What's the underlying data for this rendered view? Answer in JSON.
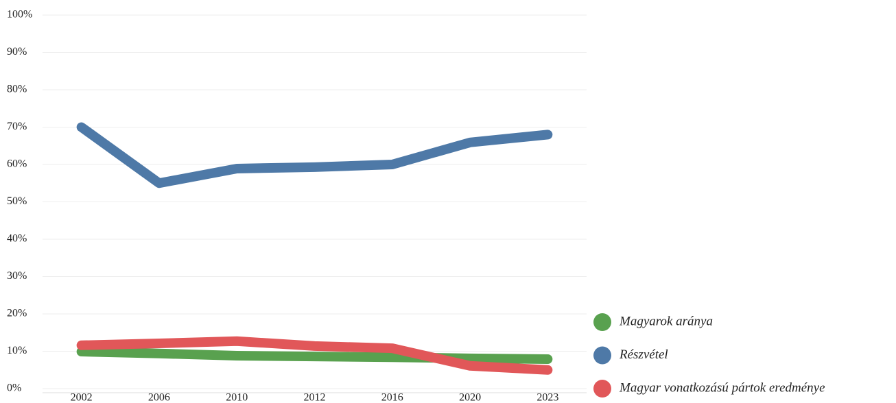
{
  "chart_data": {
    "type": "line",
    "categories": [
      "2002",
      "2006",
      "2010",
      "2012",
      "2016",
      "2020",
      "2023"
    ],
    "series": [
      {
        "name": "Magyarok aránya",
        "color": "#59a14f",
        "values": [
          9.9,
          9.4,
          8.8,
          8.6,
          8.4,
          8.1,
          7.9
        ]
      },
      {
        "name": "Részvétel",
        "color": "#4e79a7",
        "values": [
          70,
          55,
          58.9,
          59.3,
          60,
          65.9,
          68
        ]
      },
      {
        "name": "Magyar vonatkozású pártok eredménye",
        "color": "#e15759",
        "values": [
          11.6,
          12.1,
          12.7,
          11.4,
          10.8,
          6.1,
          5.0
        ]
      }
    ],
    "ylim": [
      0,
      100
    ],
    "yticks": [
      {
        "value": 0,
        "label": "0%"
      },
      {
        "value": 10,
        "label": "10%"
      },
      {
        "value": 20,
        "label": "20%"
      },
      {
        "value": 30,
        "label": "30%"
      },
      {
        "value": 40,
        "label": "40%"
      },
      {
        "value": 50,
        "label": "50%"
      },
      {
        "value": 60,
        "label": "60%"
      },
      {
        "value": 70,
        "label": "70%"
      },
      {
        "value": 80,
        "label": "80%"
      },
      {
        "value": 90,
        "label": "90%"
      },
      {
        "value": 100,
        "label": "100%"
      }
    ],
    "grid": true,
    "legend": "lower right"
  }
}
